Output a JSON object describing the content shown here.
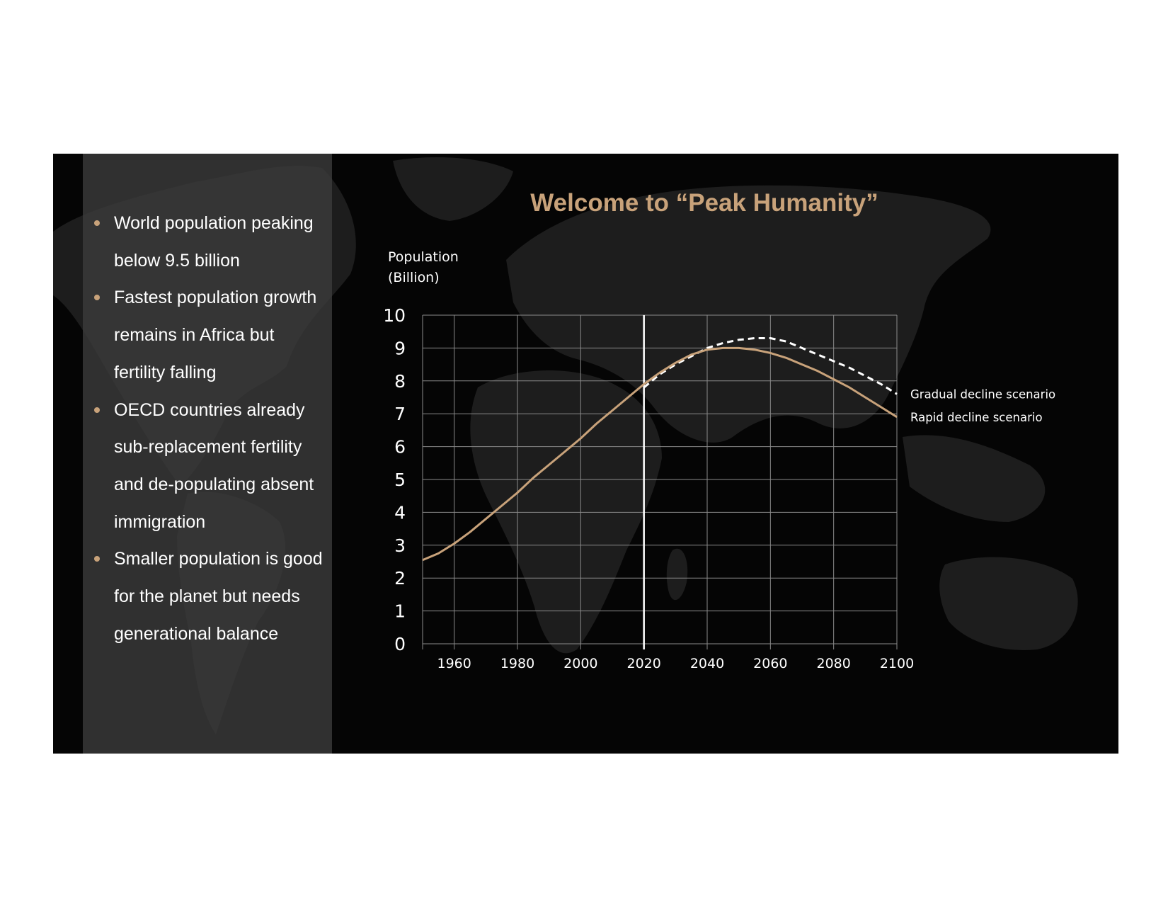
{
  "slide": {
    "bullets": [
      "World population peaking below 9.5 billion",
      "Fastest population growth remains in Africa but fertility falling",
      "OECD countries already sub-replacement fertility and de-populating absent immigration",
      "Smaller population is good for the planet but needs generational balance"
    ]
  },
  "colors": {
    "accent": "#c8a27a",
    "background": "#050505",
    "panel": "#3a3a3a",
    "grid": "#8a8a8a",
    "text": "#ffffff"
  },
  "chart_data": {
    "type": "line",
    "title": "Welcome to “Peak Humanity”",
    "ylabel_line1": "Population",
    "ylabel_line2": "(Billion)",
    "xlabel": "",
    "xlim": [
      1950,
      2100
    ],
    "ylim": [
      0,
      10
    ],
    "x_ticks": [
      1960,
      1980,
      2000,
      2020,
      2040,
      2060,
      2080,
      2100
    ],
    "y_ticks": [
      0,
      1,
      2,
      3,
      4,
      5,
      6,
      7,
      8,
      9,
      10
    ],
    "grid": true,
    "highlight_x": 2020,
    "series": [
      {
        "name": "Gradual decline scenario",
        "style": "dashed",
        "color": "#ffffff",
        "x": [
          2020,
          2025,
          2030,
          2035,
          2040,
          2045,
          2050,
          2055,
          2060,
          2065,
          2070,
          2075,
          2080,
          2085,
          2090,
          2095,
          2100
        ],
        "y": [
          7.8,
          8.2,
          8.5,
          8.75,
          9.0,
          9.15,
          9.25,
          9.3,
          9.3,
          9.2,
          9.0,
          8.8,
          8.6,
          8.4,
          8.15,
          7.9,
          7.6
        ]
      },
      {
        "name": "Rapid decline scenario",
        "style": "solid",
        "color": "#c8a27a",
        "x": [
          1950,
          1955,
          1960,
          1965,
          1970,
          1975,
          1980,
          1985,
          1990,
          1995,
          2000,
          2005,
          2010,
          2015,
          2020,
          2025,
          2030,
          2035,
          2040,
          2045,
          2050,
          2055,
          2060,
          2065,
          2070,
          2075,
          2080,
          2085,
          2090,
          2095,
          2100
        ],
        "y": [
          2.55,
          2.75,
          3.05,
          3.4,
          3.8,
          4.2,
          4.6,
          5.05,
          5.45,
          5.85,
          6.25,
          6.7,
          7.1,
          7.5,
          7.9,
          8.25,
          8.55,
          8.8,
          8.95,
          9.0,
          9.0,
          8.95,
          8.85,
          8.7,
          8.5,
          8.3,
          8.05,
          7.8,
          7.5,
          7.2,
          6.9
        ]
      }
    ]
  }
}
